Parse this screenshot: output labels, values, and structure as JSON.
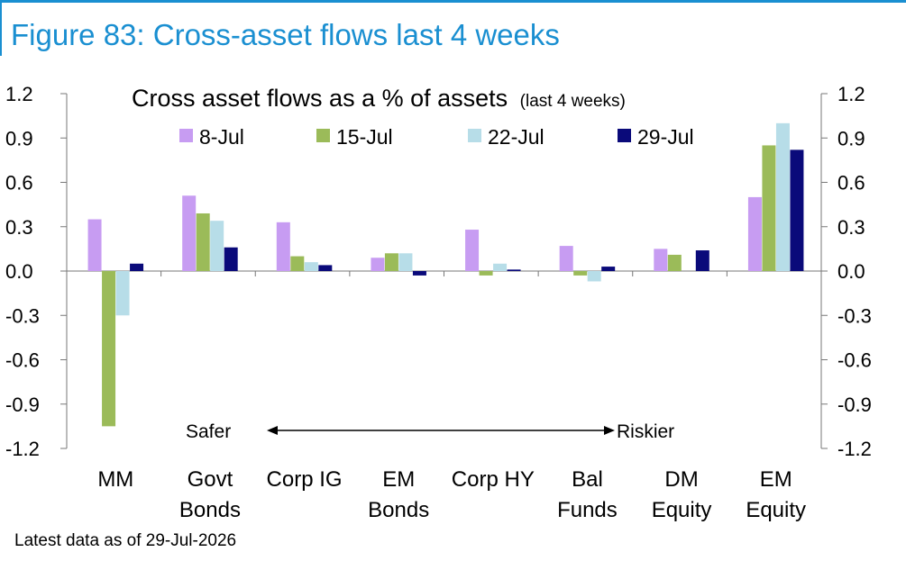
{
  "figure_title": "Figure 83: Cross-asset flows last 4 weeks",
  "footnote": "Latest data as of 29-Jul-2026",
  "chart_data": {
    "type": "bar",
    "title": "Cross asset flows as a % of assets",
    "title_note": "(last 4 weeks)",
    "categories": [
      [
        "MM"
      ],
      [
        "Govt",
        "Bonds"
      ],
      [
        "Corp IG"
      ],
      [
        "EM",
        "Bonds"
      ],
      [
        "Corp HY"
      ],
      [
        "Bal",
        "Funds"
      ],
      [
        "DM",
        "Equity"
      ],
      [
        "EM",
        "Equity"
      ]
    ],
    "series": [
      {
        "name": "8-Jul",
        "color": "#c79cf2",
        "values": [
          0.35,
          0.51,
          0.33,
          0.09,
          0.28,
          0.17,
          0.15,
          0.5
        ]
      },
      {
        "name": "15-Jul",
        "color": "#9bbb59",
        "values": [
          -1.05,
          0.39,
          0.1,
          0.12,
          -0.03,
          -0.03,
          0.11,
          0.85
        ]
      },
      {
        "name": "22-Jul",
        "color": "#b7dde8",
        "values": [
          -0.3,
          0.34,
          0.06,
          0.12,
          0.05,
          -0.07,
          0.0,
          1.0
        ]
      },
      {
        "name": "29-Jul",
        "color": "#0a0a7a",
        "values": [
          0.05,
          0.16,
          0.04,
          -0.03,
          0.01,
          0.03,
          0.14,
          0.82
        ]
      }
    ],
    "yticks": [
      "1.2",
      "0.9",
      "0.6",
      "0.3",
      "0.0",
      "-0.3",
      "-0.6",
      "-0.9",
      "-1.2"
    ],
    "ylim": [
      -1.2,
      1.2
    ],
    "legend_position": "top",
    "annotation": {
      "left": "Safer",
      "right": "Riskier"
    },
    "grid": false
  }
}
